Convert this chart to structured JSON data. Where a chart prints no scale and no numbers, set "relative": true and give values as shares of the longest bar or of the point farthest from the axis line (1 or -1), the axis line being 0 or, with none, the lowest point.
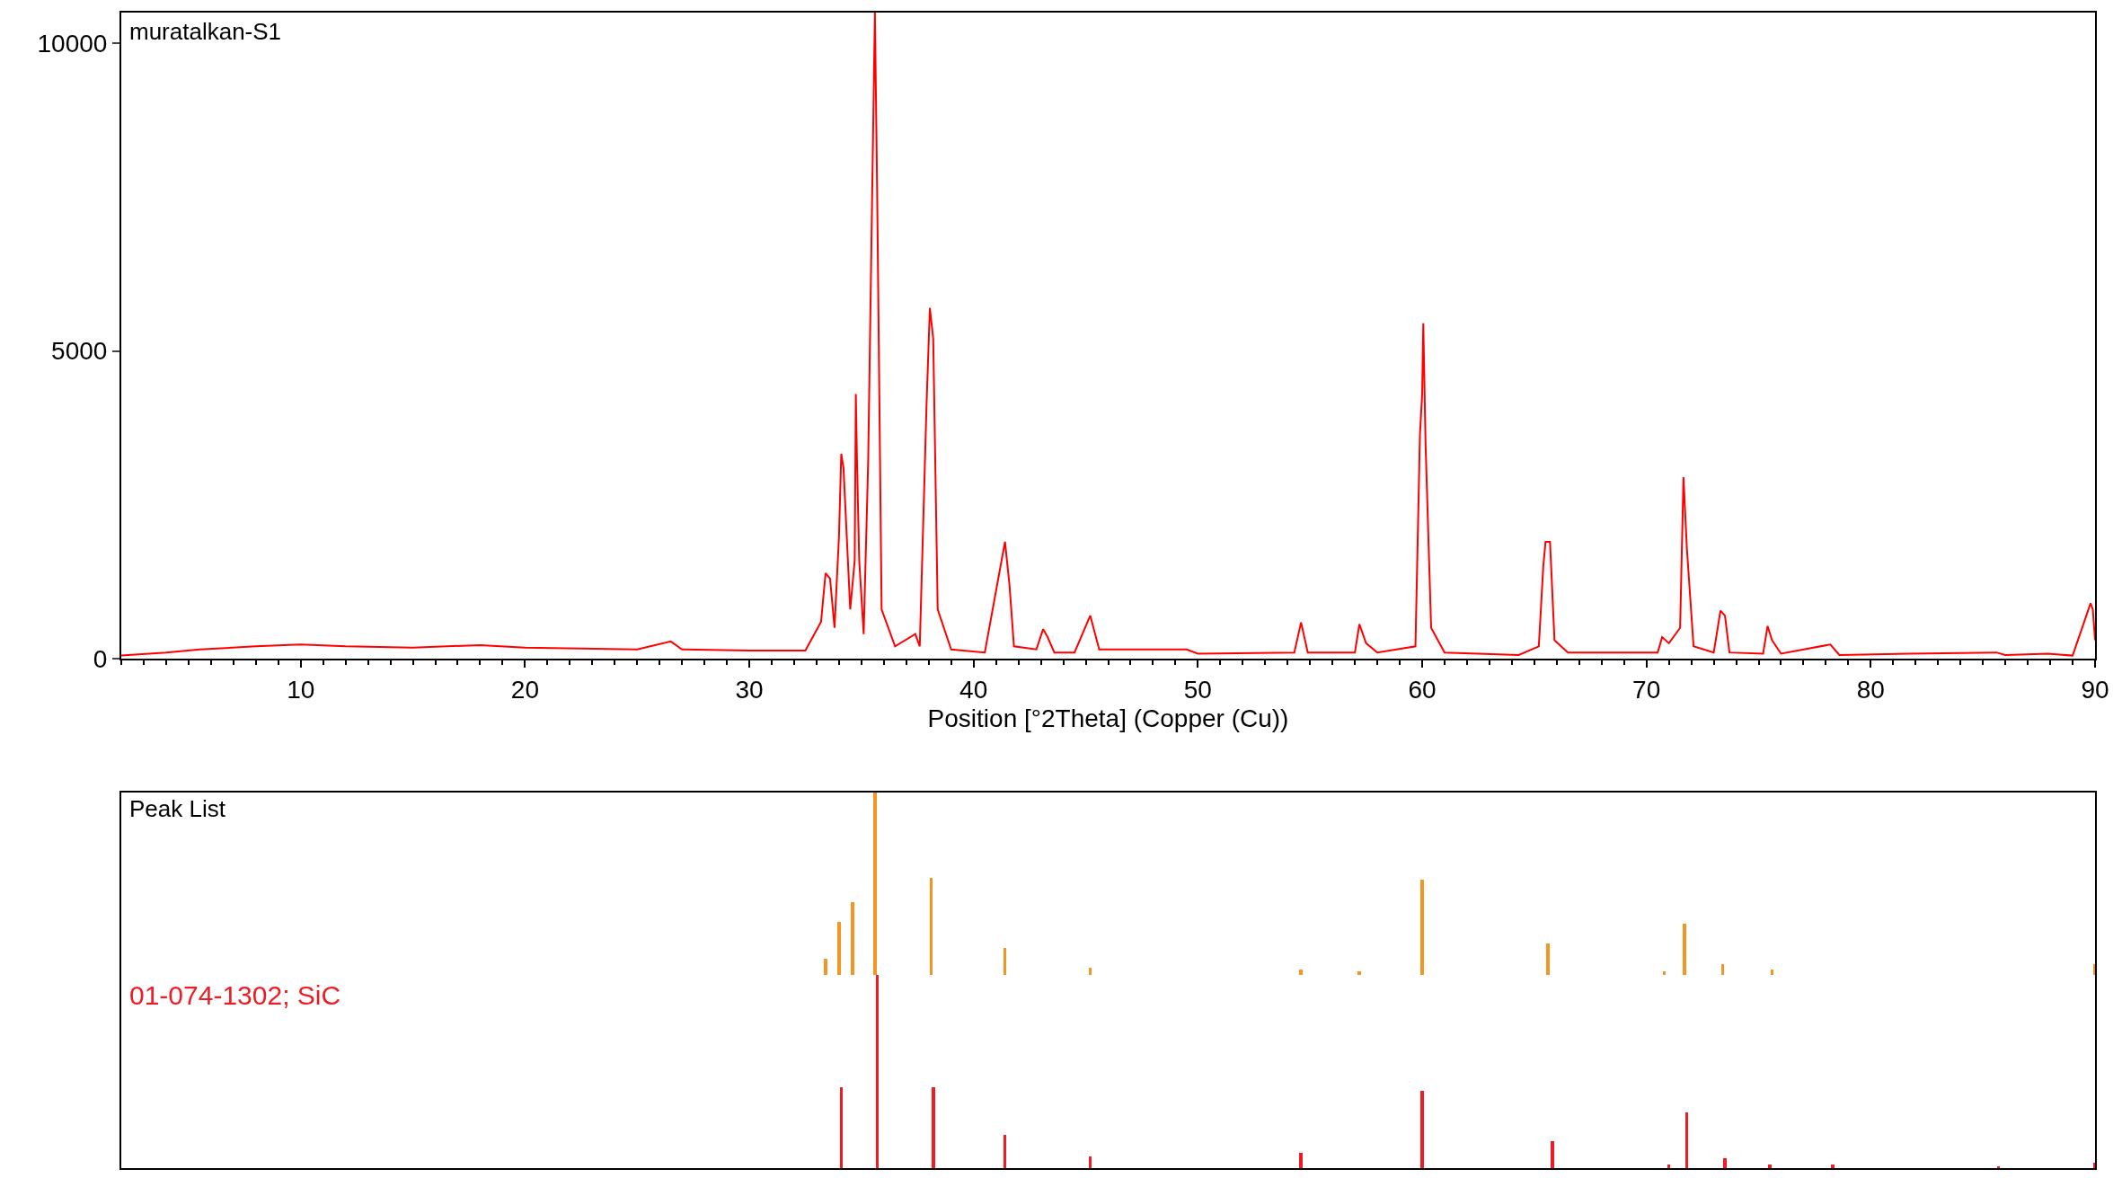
{
  "chart_data": [
    {
      "type": "line",
      "title": "muratalkan-S1",
      "xlabel": "Position [°2Theta] (Copper (Cu))",
      "xlim": [
        2,
        90
      ],
      "xticks": [
        10,
        20,
        30,
        40,
        50,
        60,
        70,
        80,
        90
      ],
      "ylim": [
        0,
        10500
      ],
      "yticks": [
        0,
        5000,
        10000
      ],
      "grid": false,
      "legend": false,
      "series": [
        {
          "color": "#ff0000",
          "x": [
            2,
            4,
            5.5,
            8,
            10,
            12,
            15,
            18,
            20,
            25,
            26.5,
            27,
            30,
            32.5,
            33.2,
            33.4,
            33.6,
            33.8,
            34.0,
            34.1,
            34.2,
            34.5,
            34.7,
            34.75,
            34.8,
            34.9,
            35.1,
            35.3,
            35.6,
            35.7,
            35.9,
            36.5,
            37.4,
            37.6,
            37.9,
            38.05,
            38.2,
            38.4,
            39,
            40.5,
            41.2,
            41.4,
            41.6,
            41.8,
            42.8,
            43.1,
            43.3,
            43.6,
            44.5,
            45.2,
            45.6,
            49.5,
            50,
            54.3,
            54.6,
            54.9,
            57.0,
            57.2,
            57.5,
            58,
            59.7,
            59.9,
            60.0,
            60.05,
            60.15,
            60.4,
            61,
            64.3,
            65.2,
            65.4,
            65.5,
            65.7,
            65.9,
            66.5,
            70.5,
            70.7,
            71.0,
            71.5,
            71.65,
            71.8,
            72.1,
            73.0,
            73.3,
            73.5,
            73.7,
            75.2,
            75.4,
            75.6,
            76,
            78.2,
            78.6,
            81.7,
            85.6,
            86,
            87.9,
            89,
            89.8,
            89.9,
            90
          ],
          "values": [
            50,
            100,
            150,
            200,
            230,
            200,
            180,
            220,
            180,
            150,
            280,
            150,
            130,
            130,
            600,
            1390,
            1300,
            500,
            2000,
            3330,
            3100,
            800,
            1600,
            4300,
            3250,
            1600,
            400,
            3200,
            10500,
            7600,
            800,
            200,
            400,
            200,
            4100,
            5700,
            5200,
            800,
            150,
            100,
            1500,
            1900,
            1200,
            200,
            150,
            480,
            350,
            100,
            100,
            700,
            150,
            150,
            80,
            100,
            590,
            100,
            100,
            560,
            250,
            100,
            200,
            3640,
            4300,
            5450,
            3500,
            500,
            100,
            60,
            200,
            1500,
            1900,
            1900,
            300,
            100,
            100,
            350,
            250,
            500,
            2950,
            1800,
            200,
            100,
            780,
            700,
            100,
            80,
            530,
            300,
            80,
            230,
            60,
            80,
            100,
            60,
            80,
            50,
            900,
            800,
            300
          ]
        }
      ]
    },
    {
      "type": "bar",
      "title": "Peak List",
      "relative": true,
      "xlim": [
        2,
        90
      ],
      "tick_labels": false,
      "series": [
        {
          "color": "#f39423",
          "x": [
            33.4,
            34.0,
            34.6,
            35.6,
            38.1,
            41.4,
            45.2,
            54.6,
            57.2,
            60.0,
            65.6,
            70.8,
            71.7,
            73.4,
            75.6,
            90.0
          ],
          "values": [
            0.09,
            0.29,
            0.4,
            1,
            0.53,
            0.15,
            0.04,
            0.03,
            0.02,
            0.52,
            0.17,
            0.02,
            0.28,
            0.06,
            0.03,
            0.06
          ]
        }
      ]
    },
    {
      "type": "bar",
      "relative": true,
      "xlim": [
        2,
        90
      ],
      "tick_labels": false,
      "series": [
        {
          "name": "01-074-1302; SiC",
          "color": "#ee1c25",
          "x": [
            34.1,
            35.7,
            38.2,
            41.4,
            45.2,
            54.6,
            60.0,
            65.8,
            71.0,
            71.8,
            73.5,
            75.5,
            78.3,
            85.7,
            90.0
          ],
          "values": [
            0.42,
            1,
            0.42,
            0.17,
            0.06,
            0.08,
            0.4,
            0.14,
            0.02,
            0.29,
            0.05,
            0.02,
            0.02,
            0.01,
            0.03
          ]
        }
      ]
    }
  ]
}
